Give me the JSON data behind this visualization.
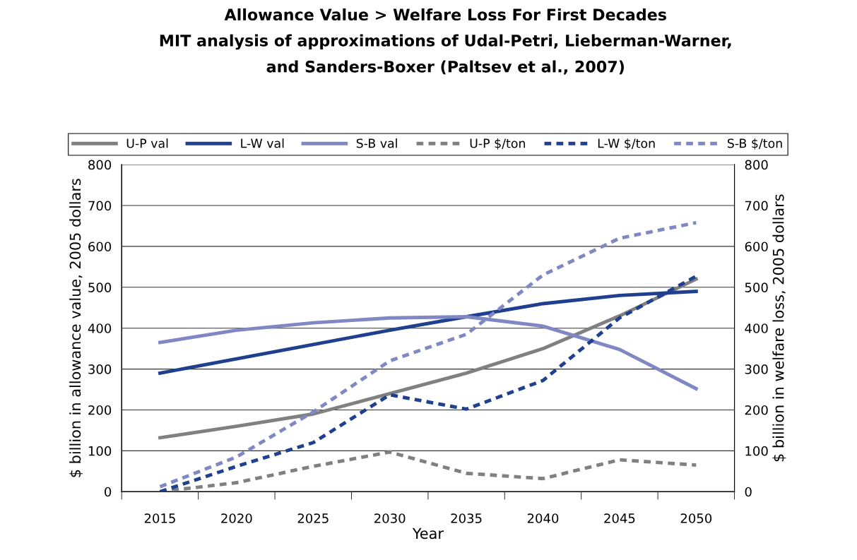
{
  "chart_data": {
    "type": "line",
    "title": "Allowance Value > Welfare Loss For First Decades\nMIT analysis of approximations of Udal-Petri, Lieberman-Warner,\nand Sanders-Boxer (Paltsev et al., 2007)",
    "xlabel": "Year",
    "ylabel": "$ billion in allowance value, 2005 dollars",
    "y2label": "$ billion in welfare loss, 2005 dollars",
    "categories": [
      "2015",
      "2020",
      "2025",
      "2030",
      "2035",
      "2040",
      "2045",
      "2050"
    ],
    "series": [
      {
        "name": "U-P val",
        "color": "#808080",
        "line_style": "solid",
        "values": [
          132,
          160,
          190,
          240,
          290,
          350,
          430,
          520
        ]
      },
      {
        "name": "L-W val",
        "color": "#1f3f8f",
        "line_style": "solid",
        "values": [
          290,
          325,
          360,
          395,
          428,
          460,
          480,
          490
        ]
      },
      {
        "name": "S-B val",
        "color": "#8088c4",
        "line_style": "solid",
        "values": [
          365,
          395,
          413,
          425,
          428,
          405,
          348,
          252
        ]
      },
      {
        "name": "U-P $/ton",
        "color": "#808080",
        "line_style": "dashed",
        "axis": "y2",
        "values": [
          0,
          22,
          62,
          97,
          45,
          32,
          78,
          65
        ]
      },
      {
        "name": "L-W $/ton",
        "color": "#1f3f8f",
        "line_style": "dashed",
        "axis": "y2",
        "values": [
          0,
          62,
          120,
          237,
          202,
          272,
          425,
          527
        ]
      },
      {
        "name": "S-B $/ton",
        "color": "#8088c4",
        "line_style": "dashed",
        "axis": "y2",
        "values": [
          12,
          85,
          195,
          320,
          385,
          530,
          620,
          658
        ]
      }
    ],
    "ylim": [
      0,
      800
    ],
    "yticks": [
      0,
      100,
      200,
      300,
      400,
      500,
      600,
      700,
      800
    ],
    "y2lim": [
      0,
      800
    ],
    "y2ticks": [
      0,
      100,
      200,
      300,
      400,
      500,
      600,
      700,
      800
    ],
    "grid": "y",
    "legend": "top",
    "marker": "none"
  }
}
